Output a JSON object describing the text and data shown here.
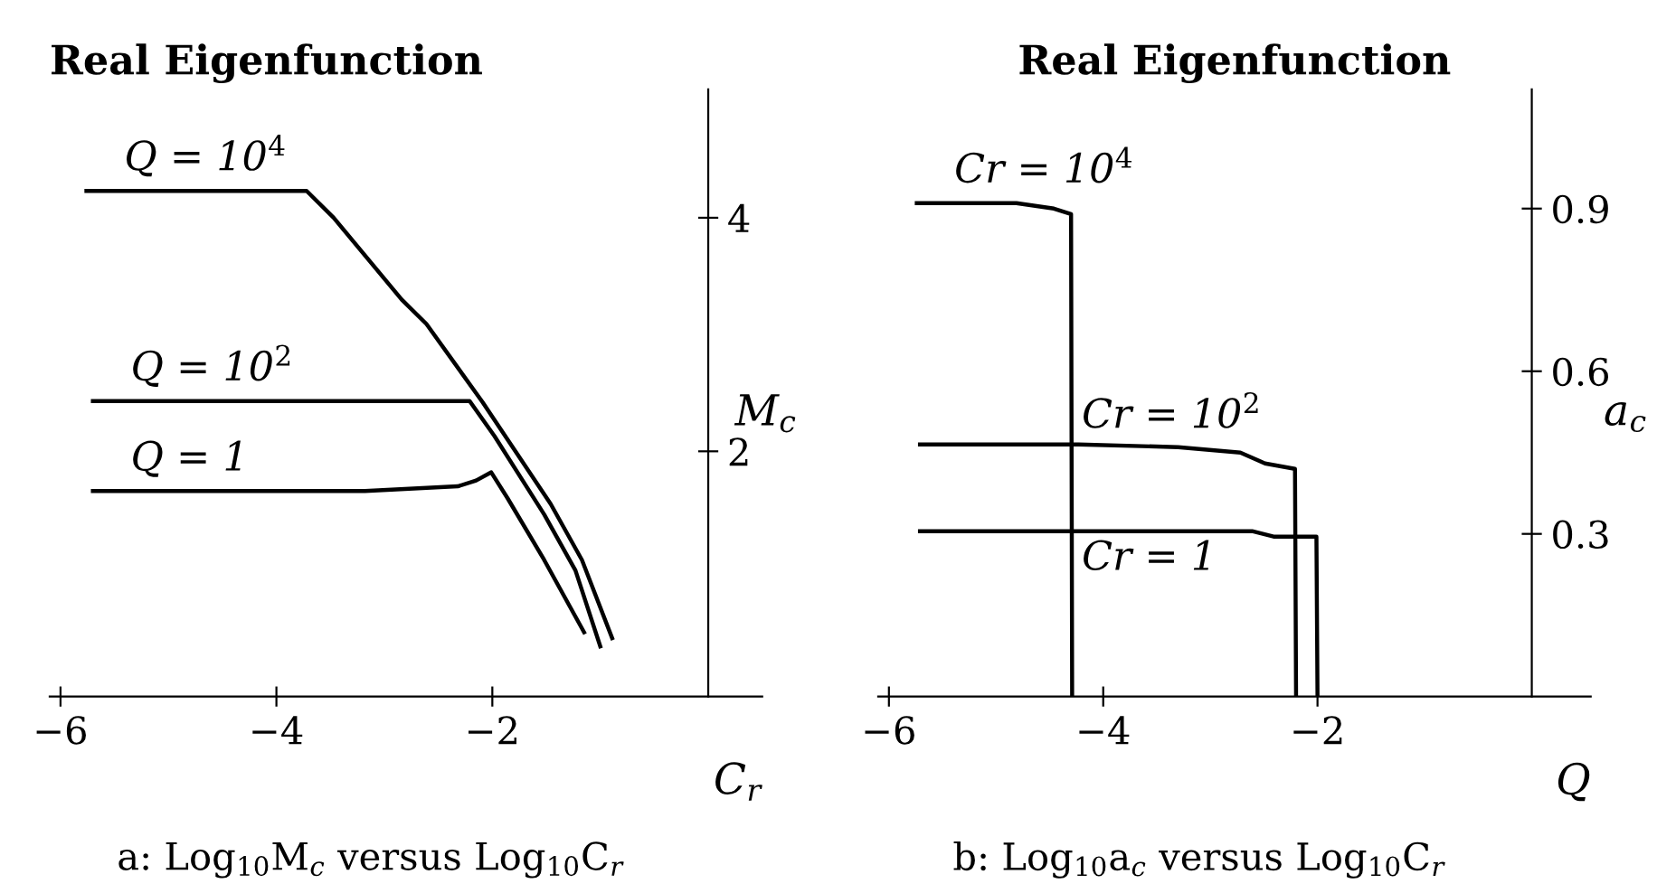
{
  "chart_data": [
    {
      "type": "line",
      "title": "Real Eigenfunction",
      "xlabel": "C$_{r}$",
      "ylabel": "M$_{c}$",
      "annotations": [
        "a: Log$_{10}$M$_{c}$ versus Log$_{10}$C$_{r}$"
      ],
      "xlim": [
        -6.1,
        0.5
      ],
      "ylim": [
        -0.1,
        5.1
      ],
      "xticks": [
        {
          "value": -6,
          "label": "−6"
        },
        {
          "value": -4,
          "label": "−4"
        },
        {
          "value": -2,
          "label": "−2"
        }
      ],
      "yticks": [
        2,
        4
      ],
      "grid": false,
      "legend": false,
      "marker": "none",
      "line_style": "solid",
      "series": [
        {
          "name": "Q = 10$^{4}$",
          "color": "#000000",
          "x": [
            -5.76,
            -3.72,
            -3.47,
            -2.84,
            -2.61,
            -2.09,
            -1.46,
            -1.17,
            -0.89
          ],
          "values": [
            4.23,
            4.23,
            4.0,
            3.3,
            3.09,
            2.42,
            1.55,
            1.07,
            0.4
          ]
        },
        {
          "name": "Q = 10$^{2}$",
          "color": "#000000",
          "x": [
            -5.7,
            -2.21,
            -1.98,
            -1.52,
            -1.23,
            -1.0
          ],
          "values": [
            2.43,
            2.43,
            2.13,
            1.46,
            0.98,
            0.33
          ]
        },
        {
          "name": "Q = 1",
          "color": "#000000",
          "x": [
            -5.7,
            -3.18,
            -2.32,
            -2.15,
            -2.01,
            -1.86,
            -1.52,
            -1.15
          ],
          "values": [
            1.66,
            1.66,
            1.7,
            1.75,
            1.82,
            1.6,
            1.07,
            0.45
          ]
        }
      ]
    },
    {
      "type": "line",
      "title": "Real Eigenfunction",
      "xlabel": "Q",
      "ylabel": "a$_{c}$",
      "annotations": [
        "b: Log$_{10}$a$_{c}$ versus Log$_{10}$C$_{r}$"
      ],
      "xlim": [
        -6.1,
        0.55
      ],
      "ylim": [
        0,
        1.12
      ],
      "xticks": [
        {
          "value": -6,
          "label": "−6"
        },
        {
          "value": -4,
          "label": "−4"
        },
        {
          "value": -2,
          "label": "−2"
        }
      ],
      "yticks": [
        0.3,
        0.6,
        0.9
      ],
      "grid": false,
      "legend": false,
      "marker": "none",
      "line_style": "solid",
      "series": [
        {
          "name": "Cr = 10$^{4}$",
          "color": "#000000",
          "x": [
            -5.74,
            -5.39,
            -4.81,
            -4.46,
            -4.3,
            -4.29
          ],
          "values": [
            0.91,
            0.91,
            0.91,
            0.9,
            0.89,
            0
          ]
        },
        {
          "name": "Cr = 10$^{2}$",
          "color": "#000000",
          "x": [
            -5.71,
            -4.23,
            -3.3,
            -2.72,
            -2.49,
            -2.21,
            -2.2
          ],
          "values": [
            0.465,
            0.465,
            0.46,
            0.45,
            0.43,
            0.42,
            0
          ]
        },
        {
          "name": "Cr = 1",
          "color": "#000000",
          "x": [
            -5.71,
            -2.61,
            -2.41,
            -2.01,
            -2.0
          ],
          "values": [
            0.305,
            0.305,
            0.295,
            0.295,
            0
          ]
        }
      ]
    }
  ]
}
